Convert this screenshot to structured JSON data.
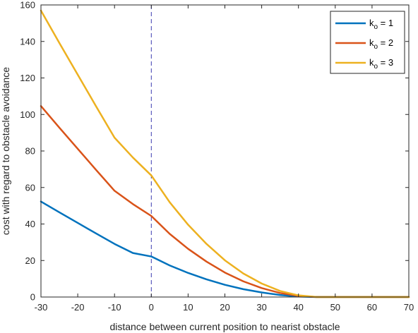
{
  "chart_data": {
    "type": "line",
    "xlabel": "distance between current position to nearist obstacle",
    "ylabel": "cost with regard to obstacle avoidance",
    "xlim": [
      -30,
      70
    ],
    "ylim": [
      0,
      160
    ],
    "xticks": [
      -30,
      -20,
      -10,
      0,
      10,
      20,
      30,
      40,
      50,
      60,
      70
    ],
    "yticks": [
      0,
      20,
      40,
      60,
      80,
      100,
      120,
      140,
      160
    ],
    "grid": false,
    "legend_position": "top-right",
    "reference_line": {
      "x": 0,
      "style": "dashed",
      "color": "#3b3bb0"
    },
    "series": [
      {
        "name": "k_o = 1",
        "legend_base": "k",
        "legend_sub": "o",
        "legend_suffix": " = 1",
        "color": "#0072BD",
        "x": [
          -30,
          -25,
          -20,
          -15,
          -10,
          -5,
          0,
          5,
          10,
          15,
          20,
          25,
          30,
          35,
          40,
          45,
          50,
          55,
          60,
          65,
          70
        ],
        "y": [
          52.3,
          46.4,
          40.6,
          34.8,
          29.1,
          24.1,
          22.2,
          17.3,
          13.2,
          9.7,
          6.7,
          4.3,
          2.5,
          1.1,
          0.3,
          0,
          0,
          0,
          0,
          0,
          0
        ]
      },
      {
        "name": "k_o = 2",
        "legend_base": "k",
        "legend_sub": "o",
        "legend_suffix": " = 2",
        "color": "#D95319",
        "x": [
          -30,
          -25,
          -20,
          -15,
          -10,
          -5,
          0,
          5,
          10,
          15,
          20,
          25,
          30,
          35,
          40,
          45,
          50,
          55,
          60,
          65,
          70
        ],
        "y": [
          104.6,
          92.8,
          81.2,
          69.6,
          58.2,
          50.9,
          44.4,
          34.6,
          26.4,
          19.4,
          13.4,
          8.6,
          4.9,
          2.2,
          0.6,
          0,
          0,
          0,
          0,
          0,
          0
        ]
      },
      {
        "name": "k_o = 3",
        "legend_base": "k",
        "legend_sub": "o",
        "legend_suffix": " = 3",
        "color": "#EDB120",
        "x": [
          -30,
          -25,
          -20,
          -15,
          -10,
          -5,
          0,
          5,
          10,
          15,
          20,
          25,
          30,
          35,
          40,
          45,
          50,
          55,
          60,
          65,
          70
        ],
        "y": [
          156.9,
          139.2,
          121.8,
          104.4,
          87.3,
          76.4,
          66.6,
          51.9,
          39.6,
          29.1,
          20.1,
          12.9,
          7.4,
          3.3,
          0.9,
          0,
          0,
          0,
          0,
          0,
          0
        ]
      }
    ]
  }
}
